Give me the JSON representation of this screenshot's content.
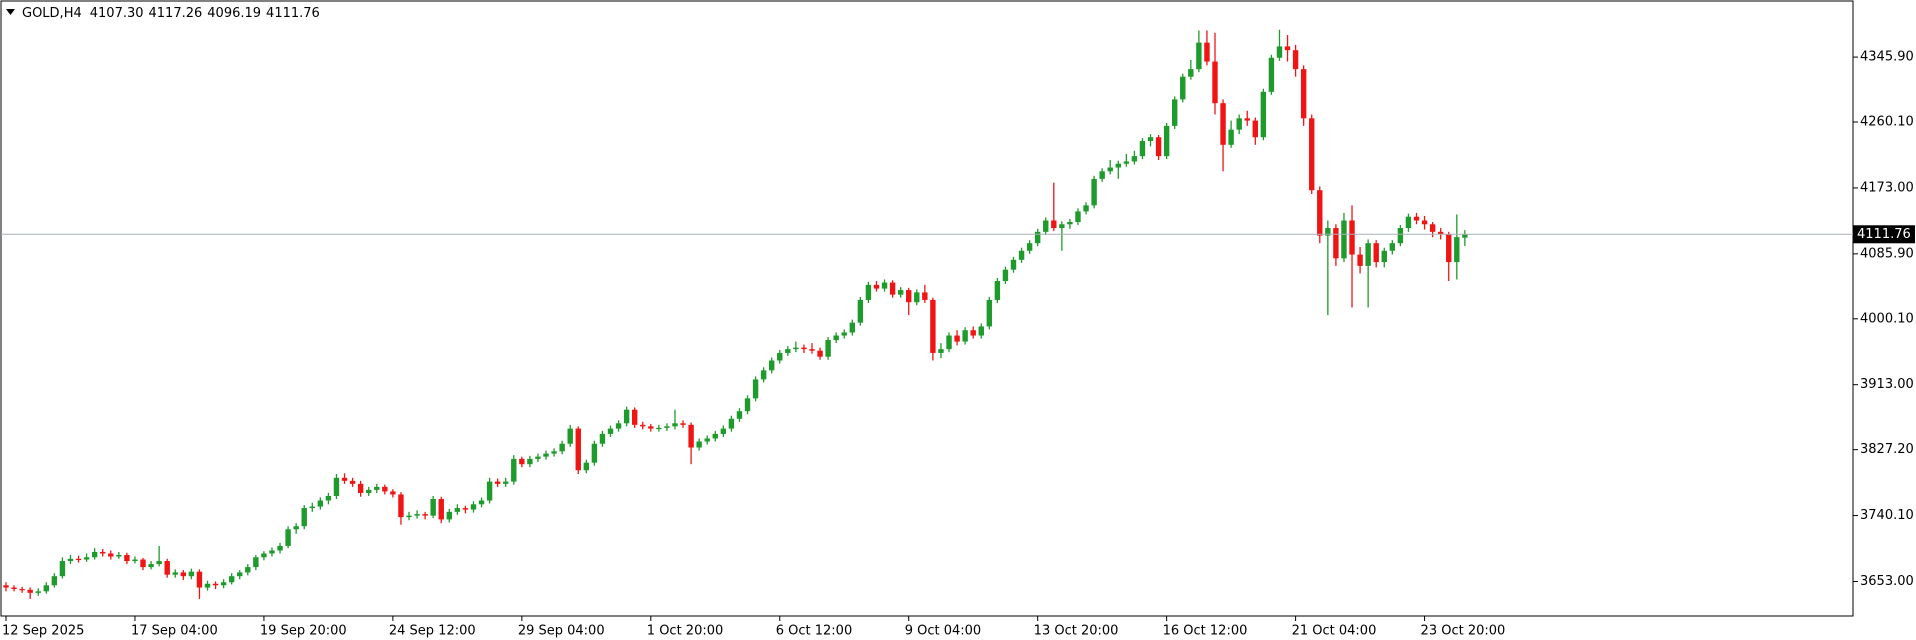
{
  "chart_data": {
    "type": "candlestick",
    "title": "GOLD,H4",
    "value_labels": [
      "4107.30",
      "4117.26",
      "4096.19",
      "4111.76"
    ],
    "up_color": "#1f9a2c",
    "down_color": "#f01515",
    "price_line_color": "#a8b0b8",
    "ylim": [
      3607.4,
      4420.0
    ],
    "yticks": [
      {
        "value": 3653.0,
        "label": "3653.00"
      },
      {
        "value": 3740.1,
        "label": "3740.10"
      },
      {
        "value": 3827.2,
        "label": "3827.20"
      },
      {
        "value": 3913.0,
        "label": "3913.00"
      },
      {
        "value": 4000.1,
        "label": "4000.10"
      },
      {
        "value": 4085.9,
        "label": "4085.90"
      },
      {
        "value": 4173.0,
        "label": "4173.00"
      },
      {
        "value": 4260.1,
        "label": "4260.10"
      },
      {
        "value": 4345.9,
        "label": "4345.90"
      }
    ],
    "categories": [
      "12 Sep 2025",
      null,
      null,
      null,
      null,
      null,
      null,
      null,
      null,
      null,
      null,
      null,
      null,
      null,
      null,
      null,
      "17 Sep 04:00",
      null,
      null,
      null,
      null,
      null,
      null,
      null,
      null,
      null,
      null,
      null,
      null,
      null,
      null,
      null,
      "19 Sep 20:00",
      null,
      null,
      null,
      null,
      null,
      null,
      null,
      null,
      null,
      null,
      null,
      null,
      null,
      null,
      null,
      "24 Sep 12:00",
      null,
      null,
      null,
      null,
      null,
      null,
      null,
      null,
      null,
      null,
      null,
      null,
      null,
      null,
      null,
      "29 Sep 04:00",
      null,
      null,
      null,
      null,
      null,
      null,
      null,
      null,
      null,
      null,
      null,
      null,
      null,
      null,
      null,
      "1 Oct 20:00",
      null,
      null,
      null,
      null,
      null,
      null,
      null,
      null,
      null,
      null,
      null,
      null,
      null,
      null,
      null,
      "6 Oct 12:00",
      null,
      null,
      null,
      null,
      null,
      null,
      null,
      null,
      null,
      null,
      null,
      null,
      null,
      null,
      null,
      "9 Oct 04:00",
      null,
      null,
      null,
      null,
      null,
      null,
      null,
      null,
      null,
      null,
      null,
      null,
      null,
      null,
      null,
      "13 Oct 20:00",
      null,
      null,
      null,
      null,
      null,
      null,
      null,
      null,
      null,
      null,
      null,
      null,
      null,
      null,
      null,
      "16 Oct 12:00",
      null,
      null,
      null,
      null,
      null,
      null,
      null,
      null,
      null,
      null,
      null,
      null,
      null,
      null,
      null,
      "21 Oct 04:00",
      null,
      null,
      null,
      null,
      null,
      null,
      null,
      null,
      null,
      null,
      null,
      null,
      null,
      null,
      null,
      "23 Oct 20:00",
      null,
      null,
      null,
      null,
      null
    ],
    "candles": [
      [
        3648,
        3652,
        3640,
        3645
      ],
      [
        3645,
        3648,
        3640,
        3643
      ],
      [
        3643,
        3646,
        3638,
        3642
      ],
      [
        3642,
        3645,
        3630,
        3638
      ],
      [
        3638,
        3644,
        3634,
        3640
      ],
      [
        3640,
        3652,
        3637,
        3648
      ],
      [
        3648,
        3664,
        3645,
        3660
      ],
      [
        3660,
        3685,
        3657,
        3680
      ],
      [
        3680,
        3688,
        3676,
        3683
      ],
      [
        3683,
        3687,
        3678,
        3682
      ],
      [
        3682,
        3690,
        3679,
        3685
      ],
      [
        3685,
        3697,
        3682,
        3692
      ],
      [
        3692,
        3696,
        3686,
        3690
      ],
      [
        3690,
        3694,
        3682,
        3686
      ],
      [
        3686,
        3692,
        3683,
        3688
      ],
      [
        3688,
        3691,
        3676,
        3680
      ],
      [
        3680,
        3686,
        3677,
        3682
      ],
      [
        3682,
        3684,
        3668,
        3672
      ],
      [
        3672,
        3680,
        3669,
        3676
      ],
      [
        3676,
        3700,
        3673,
        3680
      ],
      [
        3680,
        3683,
        3658,
        3662
      ],
      [
        3662,
        3669,
        3658,
        3665
      ],
      [
        3665,
        3668,
        3655,
        3660
      ],
      [
        3660,
        3670,
        3656,
        3666
      ],
      [
        3666,
        3669,
        3630,
        3645
      ],
      [
        3645,
        3654,
        3641,
        3650
      ],
      [
        3650,
        3653,
        3643,
        3648
      ],
      [
        3648,
        3656,
        3644,
        3652
      ],
      [
        3652,
        3664,
        3649,
        3660
      ],
      [
        3660,
        3668,
        3656,
        3665
      ],
      [
        3665,
        3676,
        3661,
        3672
      ],
      [
        3672,
        3688,
        3668,
        3685
      ],
      [
        3685,
        3693,
        3681,
        3690
      ],
      [
        3690,
        3698,
        3686,
        3694
      ],
      [
        3694,
        3704,
        3690,
        3700
      ],
      [
        3700,
        3726,
        3697,
        3722
      ],
      [
        3722,
        3730,
        3716,
        3726
      ],
      [
        3726,
        3754,
        3722,
        3750
      ],
      [
        3750,
        3757,
        3745,
        3752
      ],
      [
        3752,
        3764,
        3748,
        3760
      ],
      [
        3760,
        3770,
        3755,
        3766
      ],
      [
        3766,
        3795,
        3762,
        3790
      ],
      [
        3790,
        3796,
        3782,
        3786
      ],
      [
        3786,
        3790,
        3778,
        3782
      ],
      [
        3782,
        3786,
        3765,
        3770
      ],
      [
        3770,
        3778,
        3766,
        3774
      ],
      [
        3774,
        3782,
        3770,
        3778
      ],
      [
        3778,
        3781,
        3768,
        3772
      ],
      [
        3772,
        3775,
        3764,
        3768
      ],
      [
        3768,
        3771,
        3728,
        3738
      ],
      [
        3738,
        3745,
        3734,
        3740
      ],
      [
        3740,
        3747,
        3736,
        3742
      ],
      [
        3742,
        3745,
        3735,
        3740
      ],
      [
        3740,
        3766,
        3737,
        3762
      ],
      [
        3762,
        3765,
        3730,
        3735
      ],
      [
        3735,
        3749,
        3731,
        3745
      ],
      [
        3745,
        3755,
        3741,
        3750
      ],
      [
        3750,
        3753,
        3743,
        3748
      ],
      [
        3748,
        3759,
        3744,
        3755
      ],
      [
        3755,
        3764,
        3751,
        3760
      ],
      [
        3760,
        3790,
        3756,
        3785
      ],
      [
        3785,
        3789,
        3778,
        3782
      ],
      [
        3782,
        3790,
        3778,
        3785
      ],
      [
        3785,
        3820,
        3781,
        3815
      ],
      [
        3815,
        3818,
        3804,
        3808
      ],
      [
        3808,
        3819,
        3804,
        3815
      ],
      [
        3815,
        3822,
        3811,
        3818
      ],
      [
        3818,
        3826,
        3814,
        3822
      ],
      [
        3822,
        3829,
        3818,
        3825
      ],
      [
        3825,
        3839,
        3821,
        3835
      ],
      [
        3835,
        3860,
        3831,
        3855
      ],
      [
        3855,
        3858,
        3795,
        3800
      ],
      [
        3800,
        3814,
        3796,
        3810
      ],
      [
        3810,
        3839,
        3806,
        3835
      ],
      [
        3835,
        3852,
        3831,
        3848
      ],
      [
        3848,
        3859,
        3844,
        3855
      ],
      [
        3855,
        3866,
        3851,
        3862
      ],
      [
        3862,
        3884,
        3858,
        3880
      ],
      [
        3880,
        3883,
        3856,
        3860
      ],
      [
        3860,
        3864,
        3854,
        3858
      ],
      [
        3858,
        3861,
        3851,
        3855
      ],
      [
        3855,
        3860,
        3851,
        3856
      ],
      [
        3856,
        3862,
        3852,
        3858
      ],
      [
        3858,
        3880,
        3854,
        3862
      ],
      [
        3862,
        3866,
        3856,
        3860
      ],
      [
        3860,
        3863,
        3808,
        3830
      ],
      [
        3830,
        3842,
        3826,
        3838
      ],
      [
        3838,
        3846,
        3834,
        3842
      ],
      [
        3842,
        3852,
        3838,
        3848
      ],
      [
        3848,
        3859,
        3844,
        3855
      ],
      [
        3855,
        3872,
        3851,
        3868
      ],
      [
        3868,
        3882,
        3864,
        3878
      ],
      [
        3878,
        3899,
        3874,
        3895
      ],
      [
        3895,
        3924,
        3891,
        3920
      ],
      [
        3920,
        3936,
        3916,
        3932
      ],
      [
        3932,
        3949,
        3928,
        3945
      ],
      [
        3945,
        3959,
        3941,
        3955
      ],
      [
        3955,
        3964,
        3951,
        3960
      ],
      [
        3960,
        3970,
        3956,
        3962
      ],
      [
        3962,
        3966,
        3955,
        3960
      ],
      [
        3960,
        3968,
        3954,
        3958
      ],
      [
        3958,
        3962,
        3946,
        3950
      ],
      [
        3950,
        3976,
        3946,
        3972
      ],
      [
        3972,
        3982,
        3968,
        3978
      ],
      [
        3978,
        3986,
        3974,
        3982
      ],
      [
        3982,
        3999,
        3978,
        3995
      ],
      [
        3995,
        4029,
        3991,
        4025
      ],
      [
        4025,
        4049,
        4021,
        4045
      ],
      [
        4045,
        4050,
        4036,
        4040
      ],
      [
        4040,
        4052,
        4036,
        4048
      ],
      [
        4048,
        4051,
        4028,
        4032
      ],
      [
        4032,
        4042,
        4028,
        4038
      ],
      [
        4038,
        4041,
        4005,
        4022
      ],
      [
        4022,
        4039,
        4018,
        4035
      ],
      [
        4035,
        4045,
        4021,
        4025
      ],
      [
        4025,
        4028,
        3945,
        3955
      ],
      [
        3955,
        3968,
        3948,
        3960
      ],
      [
        3960,
        3982,
        3956,
        3978
      ],
      [
        3978,
        3985,
        3965,
        3970
      ],
      [
        3970,
        3989,
        3966,
        3985
      ],
      [
        3985,
        3990,
        3974,
        3978
      ],
      [
        3978,
        3994,
        3974,
        3990
      ],
      [
        3990,
        4029,
        3986,
        4025
      ],
      [
        4025,
        4054,
        4021,
        4050
      ],
      [
        4050,
        4069,
        4046,
        4065
      ],
      [
        4065,
        4082,
        4061,
        4078
      ],
      [
        4078,
        4094,
        4074,
        4090
      ],
      [
        4090,
        4104,
        4086,
        4100
      ],
      [
        4100,
        4119,
        4096,
        4115
      ],
      [
        4115,
        4134,
        4111,
        4130
      ],
      [
        4130,
        4180,
        4116,
        4120
      ],
      [
        4120,
        4129,
        4090,
        4125
      ],
      [
        4125,
        4132,
        4119,
        4128
      ],
      [
        4128,
        4146,
        4124,
        4142
      ],
      [
        4142,
        4154,
        4138,
        4150
      ],
      [
        4150,
        4189,
        4146,
        4185
      ],
      [
        4185,
        4199,
        4181,
        4195
      ],
      [
        4195,
        4210,
        4191,
        4200
      ],
      [
        4200,
        4209,
        4185,
        4205
      ],
      [
        4205,
        4218,
        4201,
        4208
      ],
      [
        4208,
        4222,
        4204,
        4215
      ],
      [
        4215,
        4239,
        4211,
        4235
      ],
      [
        4235,
        4244,
        4228,
        4240
      ],
      [
        4240,
        4243,
        4210,
        4215
      ],
      [
        4215,
        4259,
        4211,
        4255
      ],
      [
        4255,
        4294,
        4251,
        4290
      ],
      [
        4290,
        4324,
        4286,
        4320
      ],
      [
        4320,
        4342,
        4316,
        4330
      ],
      [
        4330,
        4381,
        4326,
        4365
      ],
      [
        4365,
        4381,
        4335,
        4340
      ],
      [
        4340,
        4378,
        4270,
        4285
      ],
      [
        4285,
        4290,
        4195,
        4230
      ],
      [
        4230,
        4262,
        4226,
        4250
      ],
      [
        4250,
        4270,
        4244,
        4265
      ],
      [
        4265,
        4275,
        4255,
        4262
      ],
      [
        4262,
        4266,
        4230,
        4240
      ],
      [
        4240,
        4304,
        4236,
        4300
      ],
      [
        4300,
        4349,
        4296,
        4345
      ],
      [
        4345,
        4382,
        4341,
        4360
      ],
      [
        4360,
        4375,
        4340,
        4355
      ],
      [
        4355,
        4362,
        4320,
        4330
      ],
      [
        4330,
        4335,
        4255,
        4265
      ],
      [
        4265,
        4270,
        4165,
        4170
      ],
      [
        4170,
        4175,
        4100,
        4110
      ],
      [
        4110,
        4130,
        4005,
        4120
      ],
      [
        4120,
        4125,
        4070,
        4080
      ],
      [
        4080,
        4140,
        4075,
        4130
      ],
      [
        4130,
        4150,
        4015,
        4085
      ],
      [
        4085,
        4095,
        4060,
        4070
      ],
      [
        4070,
        4105,
        4015,
        4100
      ],
      [
        4100,
        4104,
        4068,
        4075
      ],
      [
        4075,
        4094,
        4068,
        4090
      ],
      [
        4090,
        4104,
        4085,
        4100
      ],
      [
        4100,
        4124,
        4096,
        4120
      ],
      [
        4120,
        4139,
        4115,
        4135
      ],
      [
        4135,
        4140,
        4125,
        4130
      ],
      [
        4130,
        4136,
        4118,
        4125
      ],
      [
        4125,
        4128,
        4108,
        4115
      ],
      [
        4115,
        4120,
        4105,
        4112
      ],
      [
        4112,
        4115,
        4050,
        4075
      ],
      [
        4075,
        4138,
        4052,
        4108
      ],
      [
        4107.3,
        4117.26,
        4096.19,
        4111.76
      ]
    ]
  }
}
